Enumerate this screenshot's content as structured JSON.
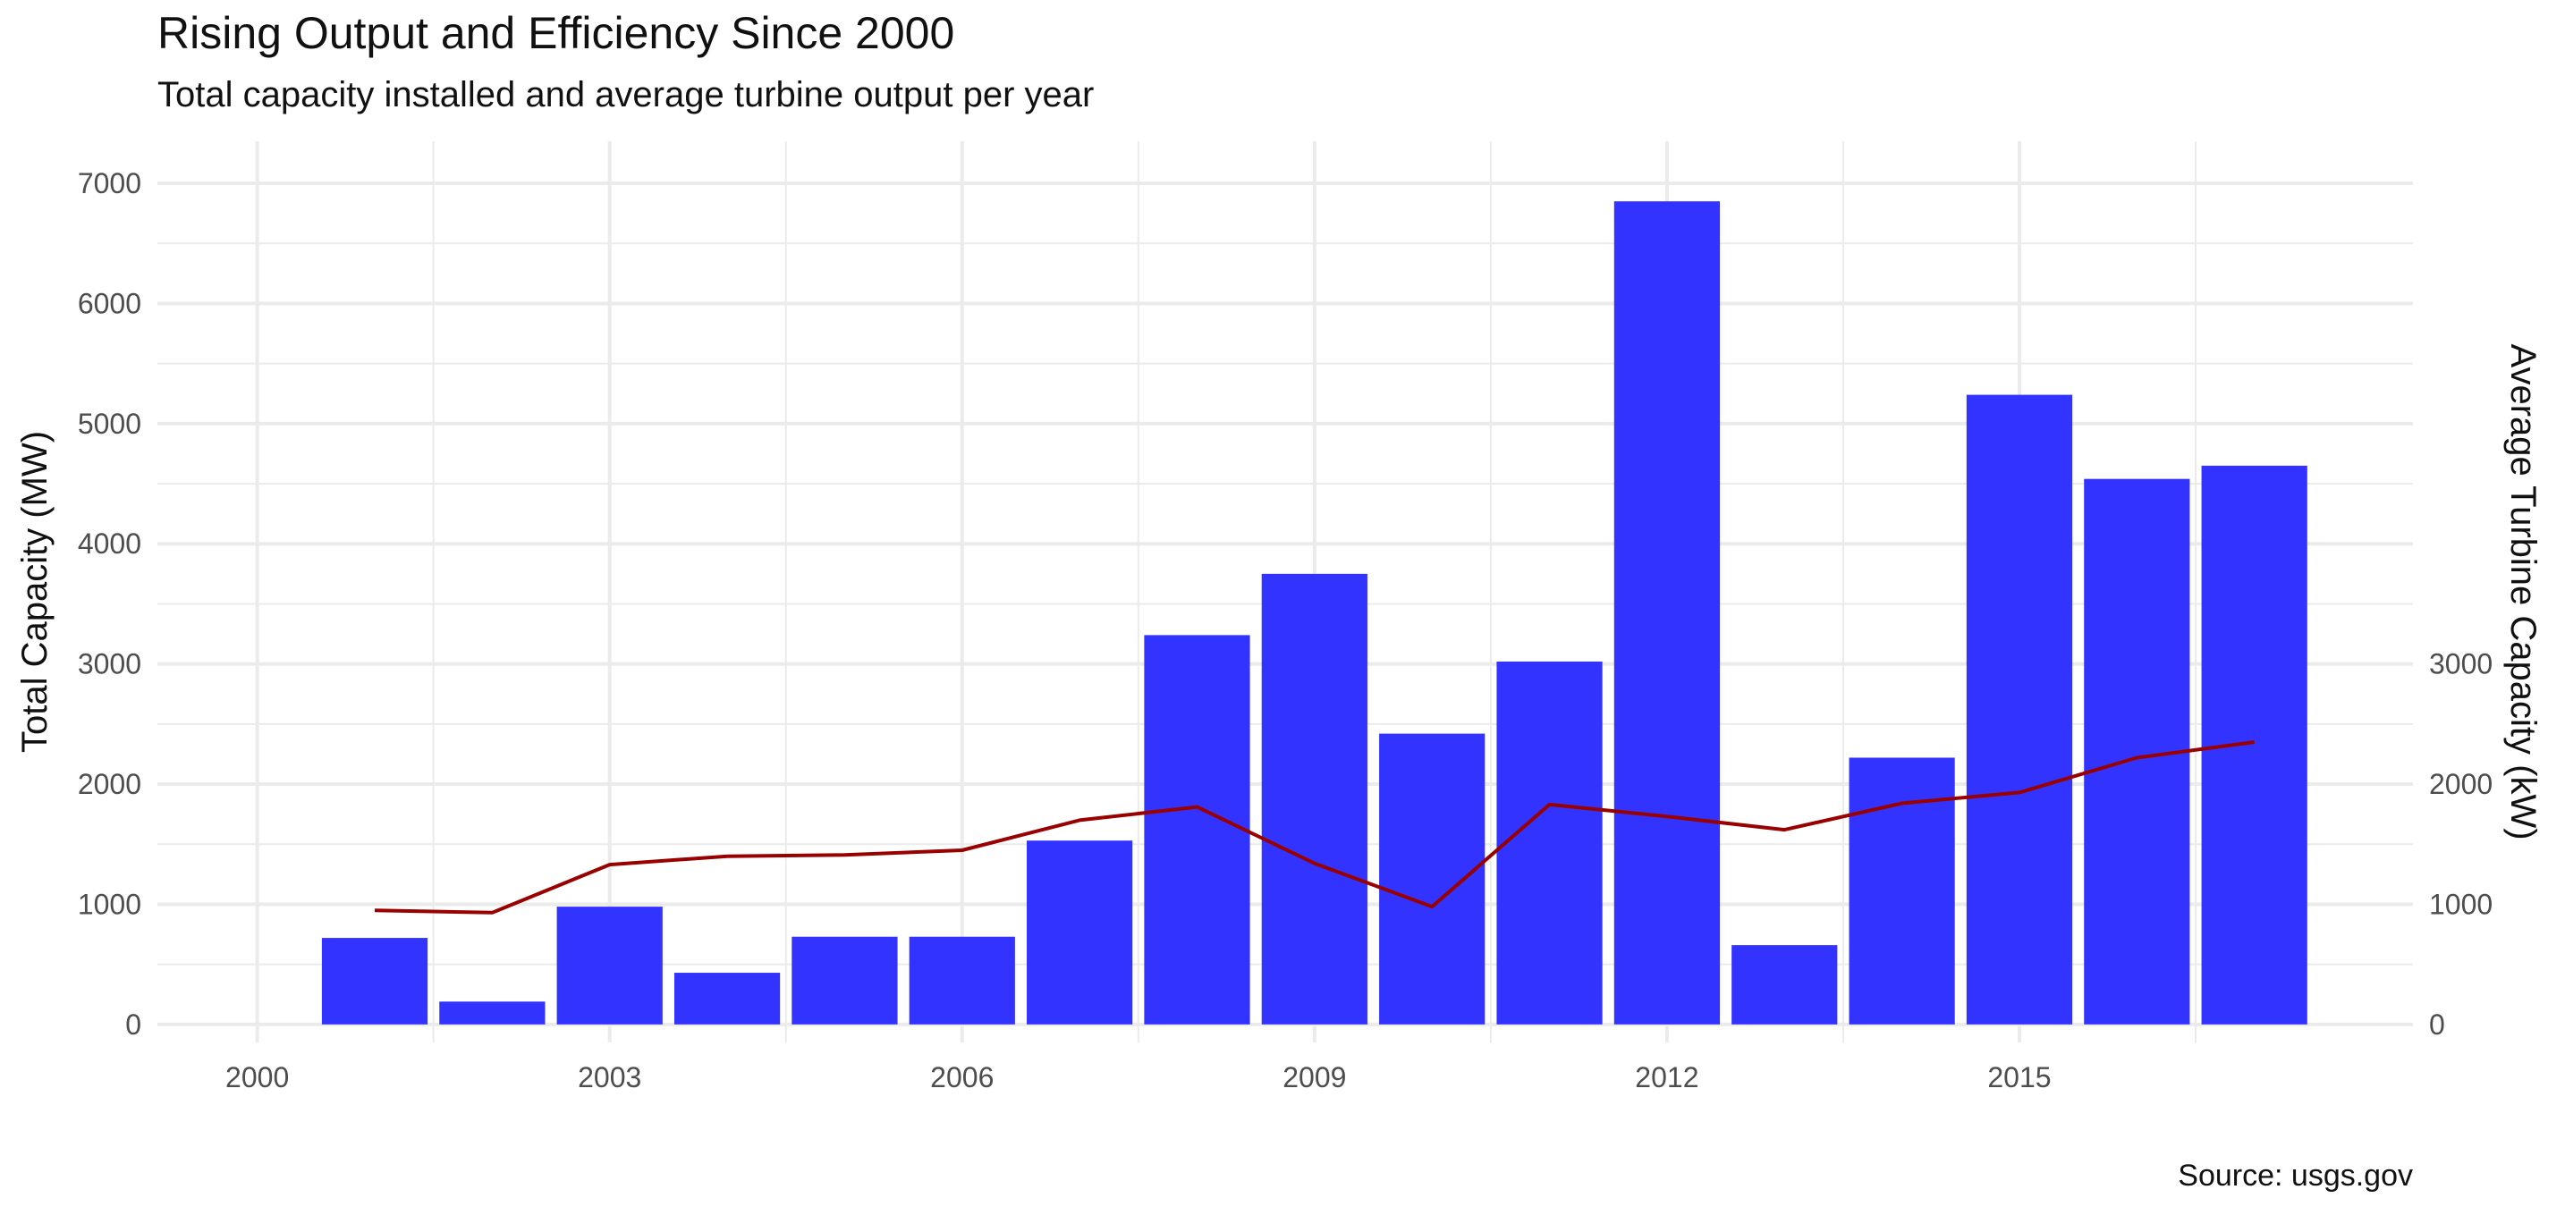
{
  "chart_data": {
    "type": "bar",
    "title": "Rising Output and Efficiency Since 2000",
    "subtitle": "Total capacity installed and average turbine output per year",
    "caption": "Source: usgs.gov",
    "xlabel": "",
    "ylabel": "Total Capacity (MW)",
    "y2label": "Average Turbine Capacity (kW)",
    "xlim": [
      1999.15,
      2018.35
    ],
    "ylim": [
      -150,
      7350
    ],
    "x_ticks": [
      2000,
      2003,
      2006,
      2009,
      2012,
      2015
    ],
    "y_ticks": [
      0,
      1000,
      2000,
      3000,
      4000,
      5000,
      6000,
      7000
    ],
    "y2_ticks": [
      0,
      1000,
      2000,
      3000
    ],
    "grid": true,
    "colors": {
      "bars": "#3333ff",
      "line": "#990000",
      "grid": "#ebebeb"
    },
    "categories": [
      2001,
      2002,
      2003,
      2004,
      2005,
      2006,
      2007,
      2008,
      2009,
      2010,
      2011,
      2012,
      2013,
      2014,
      2015,
      2016,
      2017
    ],
    "series": [
      {
        "type": "bar",
        "axis": "left",
        "values": [
          720,
          190,
          980,
          430,
          730,
          730,
          1530,
          3240,
          3750,
          2420,
          3020,
          6850,
          660,
          2220,
          5240,
          4540,
          4650
        ]
      },
      {
        "type": "line",
        "axis": "right",
        "values": [
          950,
          930,
          1330,
          1400,
          1410,
          1450,
          1700,
          1810,
          1340,
          980,
          1830,
          1730,
          1620,
          1840,
          1930,
          2220,
          2350
        ]
      }
    ]
  }
}
